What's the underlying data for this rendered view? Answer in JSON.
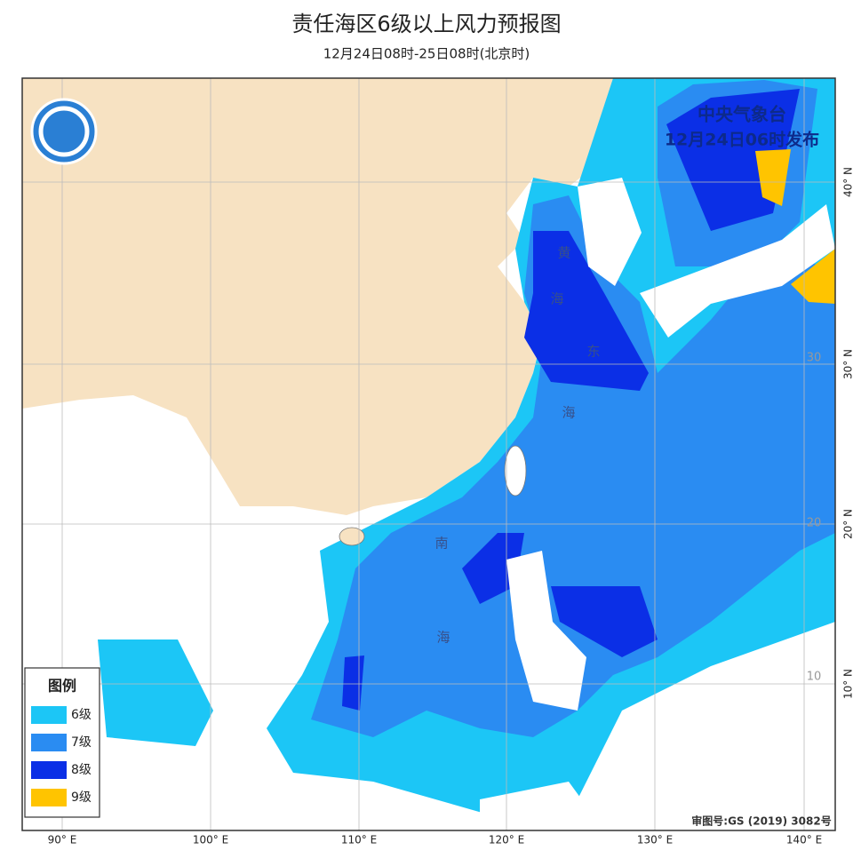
{
  "header": {
    "title": "责任海区6级以上风力预报图",
    "subtitle": "12月24日08时-25日08时(北京时)"
  },
  "issuer": {
    "name": "中央气象台",
    "time": "12月24日06时发布"
  },
  "sea_labels": [
    "黄",
    "海",
    "东",
    "海",
    "南",
    "海"
  ],
  "legend": {
    "title": "图例",
    "items": [
      {
        "label": "6级",
        "color": "#1cc6f6"
      },
      {
        "label": "7级",
        "color": "#2a8cf2"
      },
      {
        "label": "8级",
        "color": "#0b2fe6"
      },
      {
        "label": "9级",
        "color": "#ffc400"
      }
    ]
  },
  "longitude_labels": [
    "90° E",
    "100° E",
    "110° E",
    "120° E",
    "130° E",
    "140° E"
  ],
  "latitude_labels": [
    "40° N",
    "30° N",
    "20° N",
    "10° N"
  ],
  "grid_labels": [
    "30",
    "20",
    "10"
  ],
  "review_number": "审图号:GS (2019) 3082号"
}
